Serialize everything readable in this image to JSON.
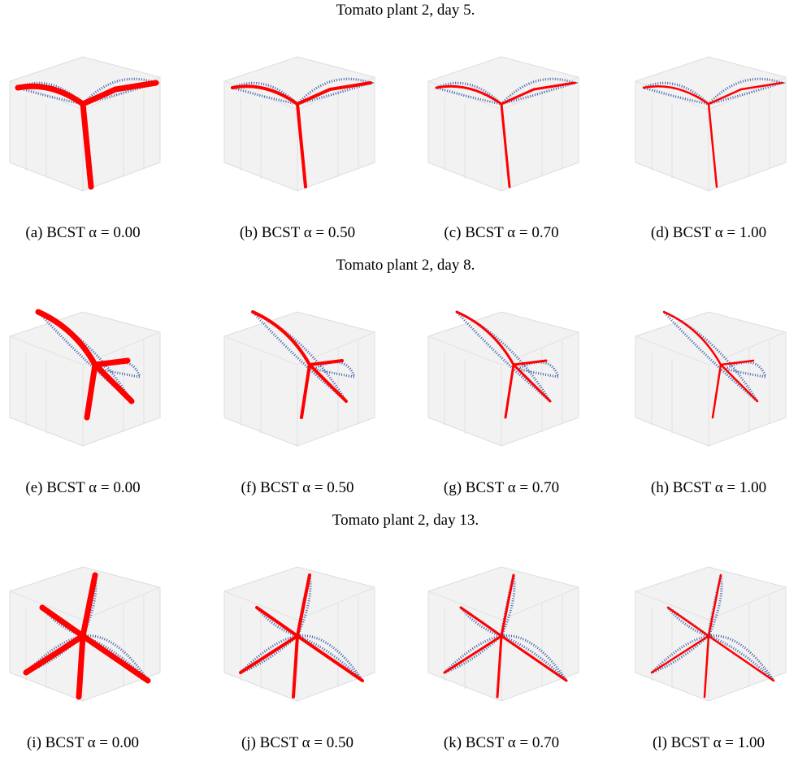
{
  "rows": [
    {
      "title": "Tomato plant 2, day 5.",
      "panels": [
        {
          "caption": "(a) BCST α = 0.00"
        },
        {
          "caption": "(b) BCST α = 0.50"
        },
        {
          "caption": "(c) BCST α = 0.70"
        },
        {
          "caption": "(d) BCST α = 1.00"
        }
      ]
    },
    {
      "title": "Tomato plant 2, day 8.",
      "panels": [
        {
          "caption": "(e) BCST α = 0.00"
        },
        {
          "caption": "(f) BCST α = 0.50"
        },
        {
          "caption": "(g) BCST α = 0.70"
        },
        {
          "caption": "(h) BCST α = 1.00"
        }
      ]
    },
    {
      "title": "Tomato plant 2, day 13.",
      "panels": [
        {
          "caption": "(i) BCST α = 0.00"
        },
        {
          "caption": "(j) BCST α = 0.50"
        },
        {
          "caption": "(k) BCST α = 0.70"
        },
        {
          "caption": "(l) BCST α = 1.00"
        }
      ]
    }
  ]
}
